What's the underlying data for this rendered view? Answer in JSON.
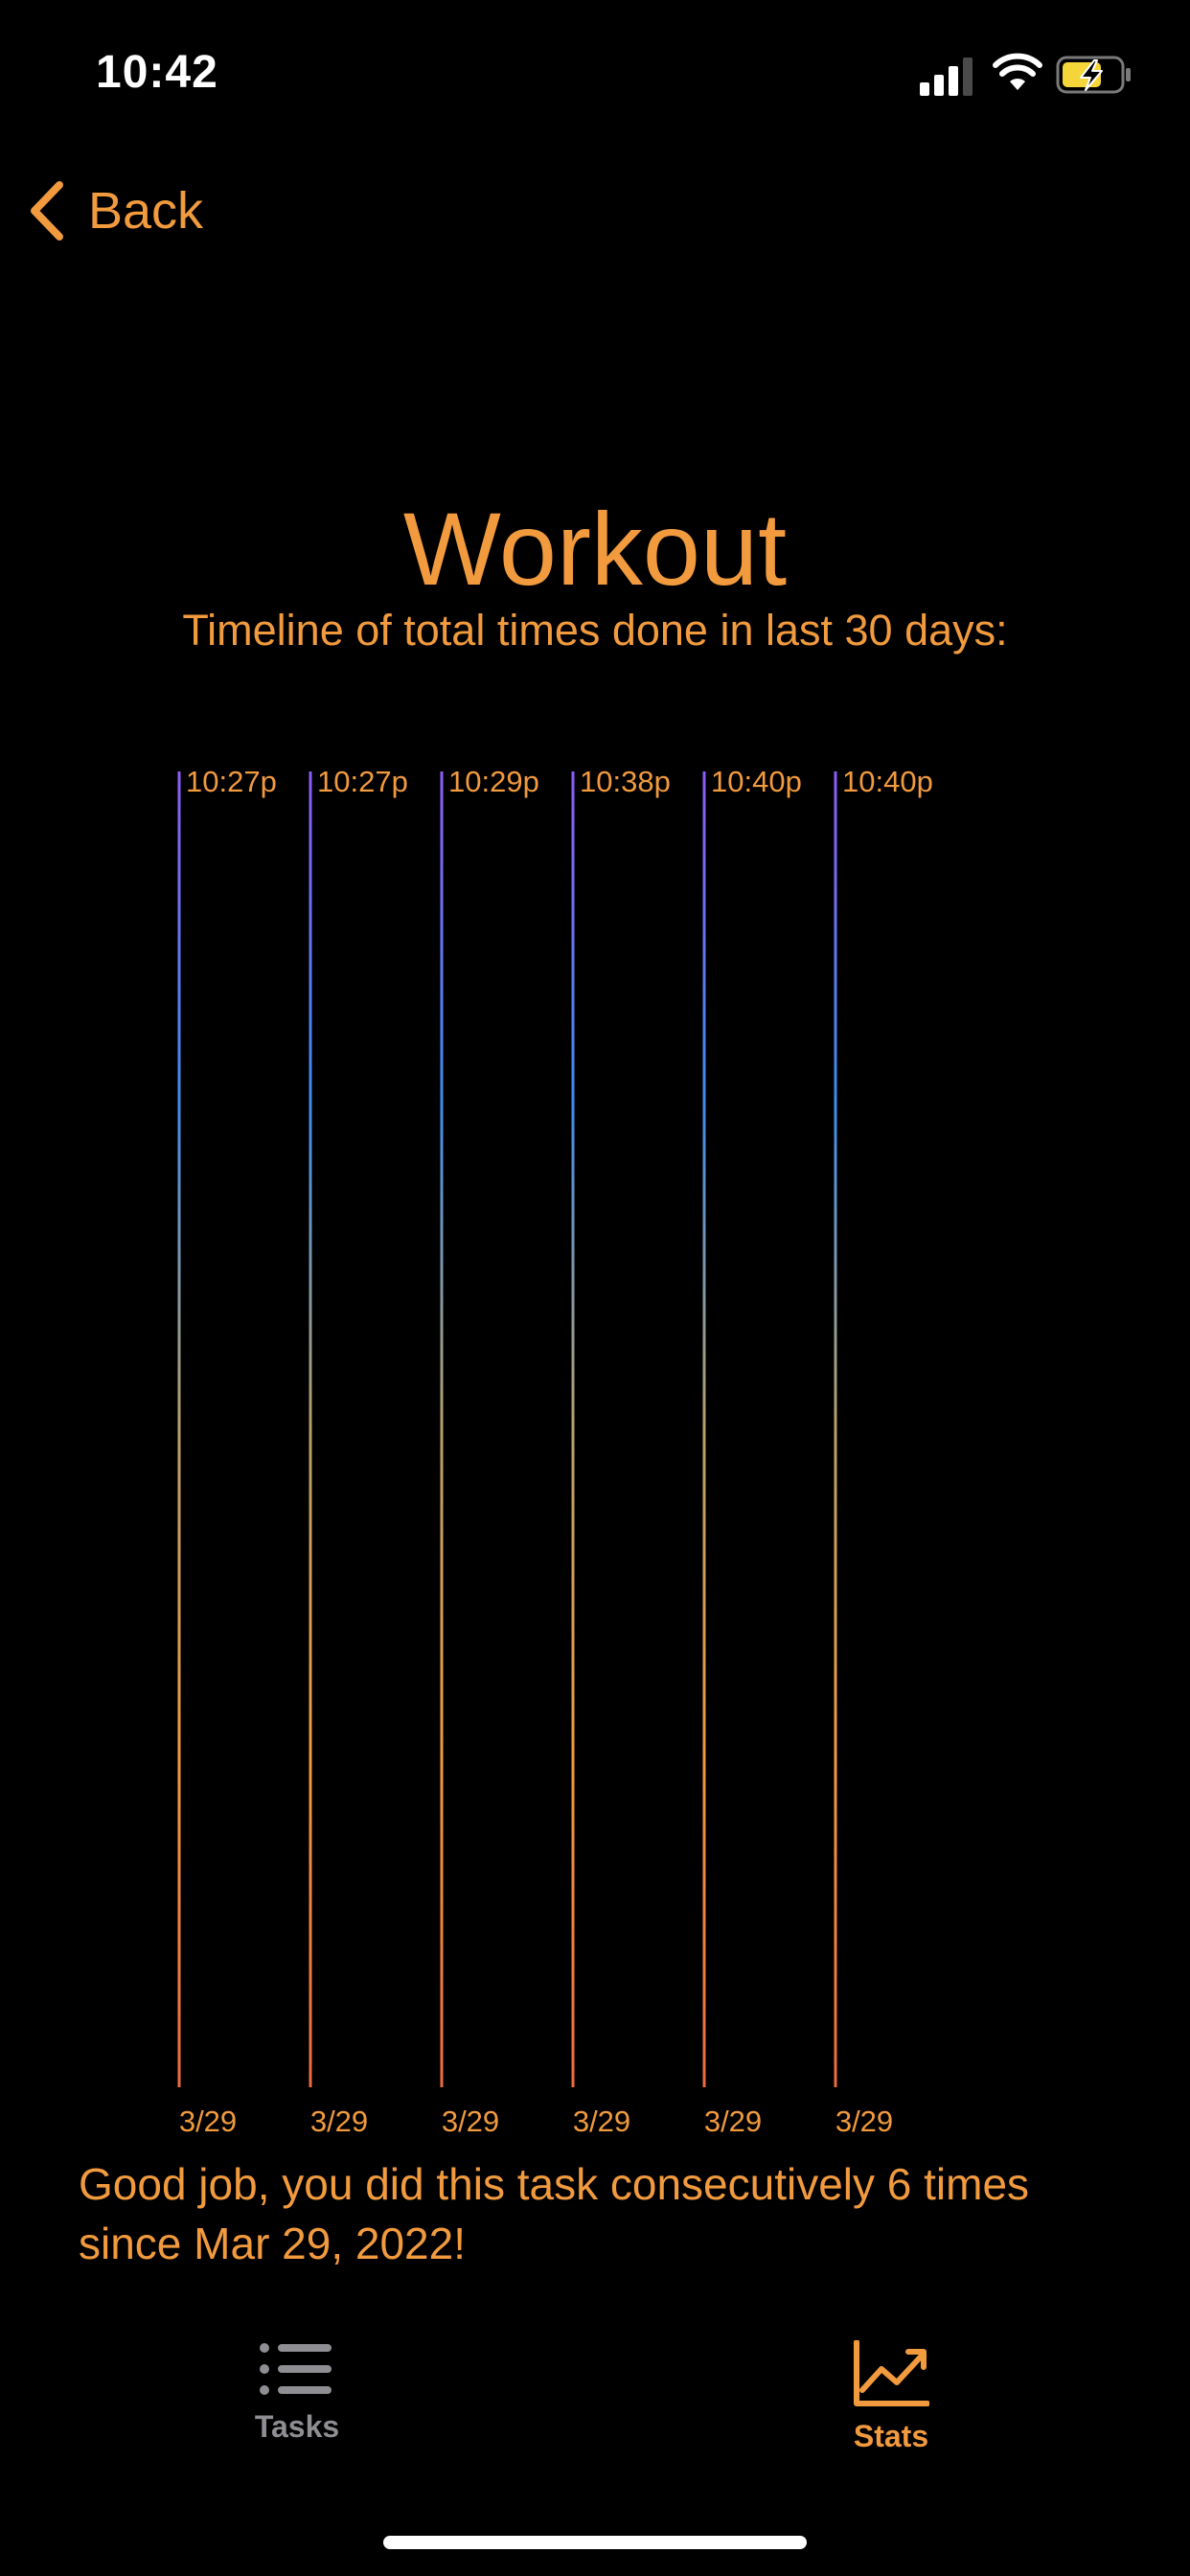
{
  "status_bar": {
    "time": "10:42",
    "icons": [
      "signal-icon",
      "wifi-icon",
      "battery-charging-icon"
    ]
  },
  "nav": {
    "back_label": "Back",
    "back_icon": "chevron-left-icon"
  },
  "header": {
    "title": "Workout",
    "subtitle": "Timeline of total times done in last 30 days:"
  },
  "chart_data": {
    "type": "timeline",
    "events": [
      {
        "time": "10:27p",
        "date": "3/29"
      },
      {
        "time": "10:27p",
        "date": "3/29"
      },
      {
        "time": "10:29p",
        "date": "3/29"
      },
      {
        "time": "10:38p",
        "date": "3/29"
      },
      {
        "time": "10:40p",
        "date": "3/29"
      },
      {
        "time": "10:40p",
        "date": "3/29"
      }
    ],
    "gradient_colors": [
      "#8E5CF6",
      "#3D8CF0",
      "#B7A06A",
      "#F19A3E",
      "#EE6A3E"
    ]
  },
  "streak": {
    "message": "Good job, you did this task consecutively 6 times since Mar 29, 2022!"
  },
  "tab_bar": {
    "tabs": [
      {
        "label": "Tasks",
        "icon": "list-icon",
        "active": false
      },
      {
        "label": "Stats",
        "icon": "chart-line-icon",
        "active": true
      }
    ]
  },
  "colors": {
    "accent": "#F19A3E",
    "background": "#000000",
    "inactive": "#8E8E93"
  }
}
